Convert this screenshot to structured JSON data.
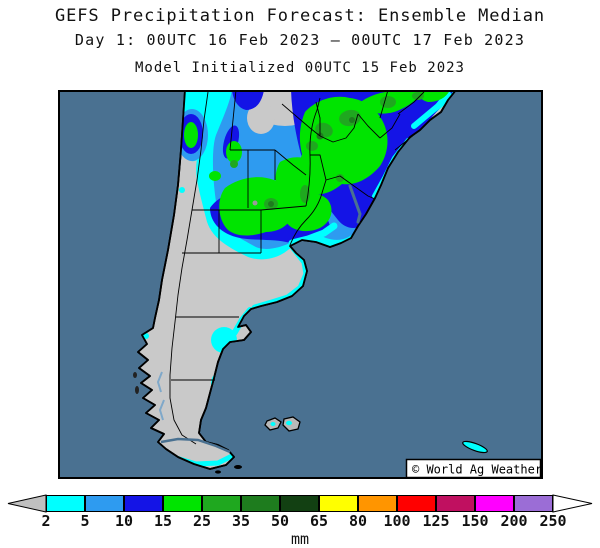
{
  "header": {
    "title": "GEFS Precipitation Forecast: Ensemble Median",
    "subtitle": "Day 1: 00UTC 16 Feb 2023 — 00UTC 17 Feb 2023",
    "init_line": "Model Initialized 00UTC 15 Feb 2023"
  },
  "map": {
    "watermark": "© World Ag Weather",
    "ocean_color": "#4A7191",
    "land_color": "#C9C9C9",
    "coast_color": "#000000"
  },
  "colorbar": {
    "unit": "mm",
    "tick_labels": [
      "2",
      "5",
      "10",
      "15",
      "25",
      "35",
      "50",
      "65",
      "80",
      "100",
      "125",
      "150",
      "200",
      "250"
    ],
    "segments": [
      {
        "range": "2-5",
        "color": "#00FFFF"
      },
      {
        "range": "5-10",
        "color": "#2E9BF0"
      },
      {
        "range": "10-15",
        "color": "#1414E6"
      },
      {
        "range": "15-25",
        "color": "#00E400"
      },
      {
        "range": "25-35",
        "color": "#1FA81F"
      },
      {
        "range": "35-50",
        "color": "#1E7C1E"
      },
      {
        "range": "50-65",
        "color": "#124012"
      },
      {
        "range": "65-80",
        "color": "#FFFF00"
      },
      {
        "range": "80-100",
        "color": "#FF9500"
      },
      {
        "range": "100-125",
        "color": "#FF0000"
      },
      {
        "range": "125-150",
        "color": "#C01060"
      },
      {
        "range": "150-200",
        "color": "#FF00FF"
      },
      {
        "range": "200-250",
        "color": "#9B6DD6"
      }
    ],
    "left_arrow_color": "#C0C0C0",
    "right_arrow_color": "#FFFFFF"
  }
}
